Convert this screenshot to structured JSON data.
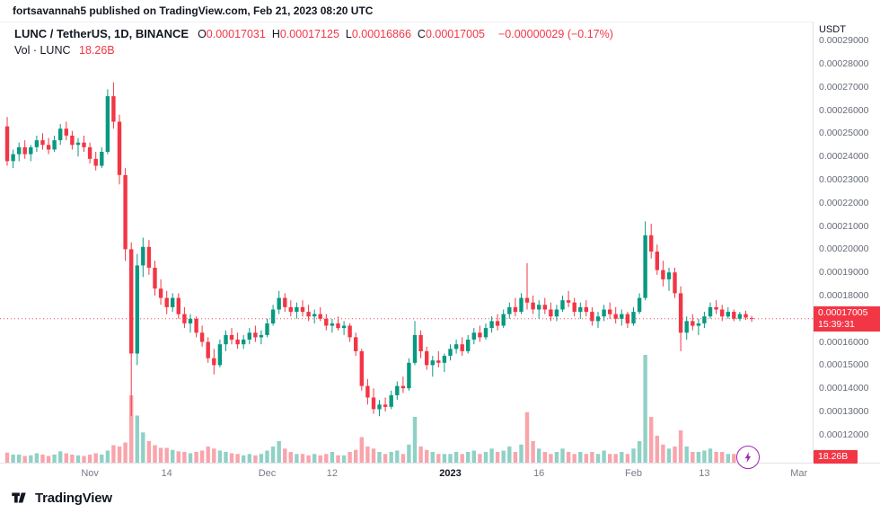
{
  "topbar": {
    "text": "fortsavannah5 published on TradingView.com, Feb 21, 2023 08:20 UTC"
  },
  "legend": {
    "symbol": "LUNC / TetherUS, 1D, BINANCE",
    "ohlc": [
      {
        "k": "O",
        "v": "0.00017031"
      },
      {
        "k": "H",
        "v": "0.00017125"
      },
      {
        "k": "L",
        "v": "0.00016866"
      },
      {
        "k": "C",
        "v": "0.00017005"
      }
    ],
    "change": "−0.00000029 (−0.17%)",
    "vol_label": "Vol · LUNC",
    "vol_value": "18.26B"
  },
  "axis": {
    "currency": "USDT",
    "y_ticks": [
      "0.00029000",
      "0.00028000",
      "0.00027000",
      "0.00026000",
      "0.00025000",
      "0.00024000",
      "0.00023000",
      "0.00022000",
      "0.00021000",
      "0.00020000",
      "0.00019000",
      "0.00018000",
      "0.00017000",
      "0.00016000",
      "0.00015000",
      "0.00014000",
      "0.00013000",
      "0.00012000"
    ],
    "price_badge": {
      "price": "0.00017005",
      "countdown": "15:39:31"
    },
    "volume_badge": "18.26B",
    "x_labels": [
      {
        "label": "Nov",
        "day": 14,
        "bold": false
      },
      {
        "label": "14",
        "day": 27,
        "bold": false
      },
      {
        "label": "Dec",
        "day": 44,
        "bold": false
      },
      {
        "label": "12",
        "day": 55,
        "bold": false
      },
      {
        "label": "2023",
        "day": 75,
        "bold": true
      },
      {
        "label": "16",
        "day": 90,
        "bold": false
      },
      {
        "label": "Feb",
        "day": 106,
        "bold": false
      },
      {
        "label": "13",
        "day": 118,
        "bold": false
      },
      {
        "label": "Mar",
        "day": 134,
        "bold": false
      }
    ]
  },
  "footer": {
    "brand": "TradingView"
  },
  "colors": {
    "up": "#089981",
    "down": "#F23645",
    "vol_up": "rgba(8,153,129,0.45)",
    "vol_down": "rgba(242,54,69,0.45)",
    "price_line": "#F23645",
    "boost": "#9C27B0"
  },
  "chart_data": {
    "type": "candlestick",
    "title": "LUNC / TetherUS, 1D, BINANCE",
    "interval": "1D",
    "quote_currency": "USDT",
    "legend_position": "top-left",
    "grid": false,
    "ylim": [
      0.00012,
      0.000295
    ],
    "price_scale": 1e-05,
    "volume_unit": "B",
    "volume_axis_max_b": 160,
    "last_close": 0.00017005,
    "series_note": "candles = [open, high, low, close, volumeB] in units of price_scale (1e-5 USDT), daily from mid-Oct 2022 to Feb 21 2023",
    "candles": [
      [
        25.3,
        25.7,
        23.6,
        23.8,
        15
      ],
      [
        23.8,
        24.3,
        23.5,
        24.1,
        12
      ],
      [
        24.1,
        24.6,
        23.8,
        24.4,
        12
      ],
      [
        24.4,
        24.7,
        23.9,
        24.1,
        10
      ],
      [
        24.1,
        24.5,
        23.8,
        24.4,
        11
      ],
      [
        24.4,
        24.9,
        24.2,
        24.7,
        14
      ],
      [
        24.7,
        25.0,
        24.3,
        24.5,
        12
      ],
      [
        24.5,
        24.8,
        24.1,
        24.3,
        10
      ],
      [
        24.3,
        24.9,
        24.2,
        24.7,
        12
      ],
      [
        24.7,
        25.4,
        24.5,
        25.2,
        17
      ],
      [
        25.2,
        25.5,
        24.7,
        24.9,
        14
      ],
      [
        24.9,
        25.1,
        24.3,
        24.5,
        12
      ],
      [
        24.5,
        24.8,
        24.0,
        24.6,
        11
      ],
      [
        24.6,
        24.9,
        24.2,
        24.4,
        10
      ],
      [
        24.4,
        24.6,
        23.7,
        23.9,
        12
      ],
      [
        23.9,
        24.2,
        23.4,
        23.6,
        14
      ],
      [
        23.6,
        24.4,
        23.5,
        24.2,
        12
      ],
      [
        24.2,
        26.9,
        24.1,
        26.6,
        18
      ],
      [
        26.6,
        27.2,
        25.2,
        25.5,
        26
      ],
      [
        25.5,
        25.8,
        22.8,
        23.2,
        24
      ],
      [
        23.2,
        23.5,
        19.5,
        20.0,
        30
      ],
      [
        20.0,
        20.3,
        12.8,
        15.5,
        100
      ],
      [
        15.5,
        19.8,
        15.0,
        19.3,
        70
      ],
      [
        19.3,
        20.5,
        18.8,
        20.1,
        45
      ],
      [
        20.1,
        20.4,
        18.9,
        19.2,
        32
      ],
      [
        19.2,
        19.5,
        18.0,
        18.3,
        26
      ],
      [
        18.3,
        18.7,
        17.6,
        17.9,
        22
      ],
      [
        17.9,
        18.2,
        17.2,
        17.5,
        22
      ],
      [
        17.5,
        18.1,
        17.3,
        17.9,
        19
      ],
      [
        17.9,
        18.1,
        17.0,
        17.2,
        17
      ],
      [
        17.2,
        17.5,
        16.6,
        16.8,
        16
      ],
      [
        16.8,
        17.2,
        16.4,
        17.0,
        14
      ],
      [
        17.0,
        17.1,
        16.2,
        16.4,
        16
      ],
      [
        16.4,
        16.7,
        15.8,
        16.0,
        18
      ],
      [
        16.0,
        16.2,
        15.1,
        15.3,
        24
      ],
      [
        15.3,
        15.7,
        14.6,
        15.0,
        21
      ],
      [
        15.0,
        16.1,
        14.9,
        15.9,
        18
      ],
      [
        15.9,
        16.5,
        15.6,
        16.3,
        16
      ],
      [
        16.3,
        16.6,
        15.9,
        16.1,
        14
      ],
      [
        16.1,
        16.4,
        15.7,
        15.9,
        13
      ],
      [
        15.9,
        16.3,
        15.7,
        16.1,
        11
      ],
      [
        16.1,
        16.6,
        15.9,
        16.4,
        13
      ],
      [
        16.4,
        16.7,
        16.0,
        16.2,
        11
      ],
      [
        16.2,
        16.5,
        15.9,
        16.3,
        13
      ],
      [
        16.3,
        17.0,
        16.2,
        16.8,
        18
      ],
      [
        16.8,
        17.6,
        16.7,
        17.4,
        24
      ],
      [
        17.4,
        18.2,
        17.2,
        17.9,
        32
      ],
      [
        17.9,
        18.1,
        17.3,
        17.5,
        21
      ],
      [
        17.5,
        17.8,
        17.1,
        17.3,
        16
      ],
      [
        17.3,
        17.7,
        17.0,
        17.5,
        13
      ],
      [
        17.5,
        17.8,
        17.1,
        17.3,
        13
      ],
      [
        17.3,
        17.6,
        16.9,
        17.1,
        11
      ],
      [
        17.1,
        17.4,
        16.8,
        17.2,
        13
      ],
      [
        17.2,
        17.5,
        16.9,
        17.0,
        11
      ],
      [
        17.0,
        17.2,
        16.5,
        16.7,
        13
      ],
      [
        16.7,
        17.0,
        16.4,
        16.8,
        16
      ],
      [
        16.8,
        17.1,
        16.5,
        16.6,
        11
      ],
      [
        16.6,
        16.9,
        16.3,
        16.7,
        11
      ],
      [
        16.7,
        16.8,
        16.0,
        16.2,
        16
      ],
      [
        16.2,
        16.4,
        15.4,
        15.6,
        19
      ],
      [
        15.6,
        15.7,
        13.9,
        14.1,
        38
      ],
      [
        14.1,
        14.4,
        13.3,
        13.6,
        24
      ],
      [
        13.6,
        14.0,
        12.9,
        13.1,
        21
      ],
      [
        13.1,
        13.5,
        12.8,
        13.3,
        16
      ],
      [
        13.3,
        13.6,
        13.0,
        13.2,
        13
      ],
      [
        13.2,
        13.9,
        13.1,
        13.7,
        16
      ],
      [
        13.7,
        14.3,
        13.5,
        14.1,
        18
      ],
      [
        14.1,
        14.5,
        13.8,
        14.0,
        13
      ],
      [
        14.0,
        15.3,
        13.9,
        15.1,
        27
      ],
      [
        15.1,
        16.9,
        15.0,
        16.3,
        68
      ],
      [
        16.3,
        16.5,
        15.3,
        15.6,
        24
      ],
      [
        15.6,
        15.8,
        14.8,
        15.0,
        19
      ],
      [
        15.0,
        15.4,
        14.5,
        15.2,
        16
      ],
      [
        15.2,
        15.6,
        14.9,
        15.1,
        13
      ],
      [
        15.1,
        15.5,
        14.7,
        15.4,
        13
      ],
      [
        15.4,
        15.9,
        15.2,
        15.7,
        13
      ],
      [
        15.7,
        16.1,
        15.5,
        15.9,
        16
      ],
      [
        15.9,
        16.2,
        15.4,
        15.6,
        13
      ],
      [
        15.6,
        16.3,
        15.5,
        16.1,
        16
      ],
      [
        16.1,
        16.6,
        15.9,
        16.4,
        18
      ],
      [
        16.4,
        16.7,
        16.0,
        16.2,
        13
      ],
      [
        16.2,
        16.8,
        16.1,
        16.6,
        16
      ],
      [
        16.6,
        17.1,
        16.4,
        16.9,
        21
      ],
      [
        16.9,
        17.2,
        16.5,
        16.7,
        16
      ],
      [
        16.7,
        17.4,
        16.6,
        17.2,
        18
      ],
      [
        17.2,
        17.7,
        17.0,
        17.5,
        24
      ],
      [
        17.5,
        17.9,
        17.1,
        17.3,
        16
      ],
      [
        17.3,
        18.1,
        17.2,
        17.9,
        27
      ],
      [
        17.9,
        19.4,
        17.4,
        17.7,
        75
      ],
      [
        17.7,
        18.0,
        17.2,
        17.4,
        32
      ],
      [
        17.4,
        17.8,
        17.0,
        17.6,
        21
      ],
      [
        17.6,
        17.9,
        17.2,
        17.4,
        16
      ],
      [
        17.4,
        17.7,
        16.9,
        17.1,
        13
      ],
      [
        17.1,
        17.6,
        16.9,
        17.4,
        16
      ],
      [
        17.4,
        18.0,
        17.3,
        17.8,
        21
      ],
      [
        17.8,
        18.2,
        17.5,
        17.7,
        16
      ],
      [
        17.7,
        17.9,
        17.1,
        17.3,
        13
      ],
      [
        17.3,
        17.7,
        17.0,
        17.5,
        16
      ],
      [
        17.5,
        17.8,
        17.1,
        17.3,
        13
      ],
      [
        17.3,
        17.5,
        16.7,
        16.9,
        16
      ],
      [
        16.9,
        17.3,
        16.6,
        17.1,
        13
      ],
      [
        17.1,
        17.6,
        16.9,
        17.4,
        18
      ],
      [
        17.4,
        17.7,
        17.0,
        17.2,
        13
      ],
      [
        17.2,
        17.5,
        16.8,
        17.0,
        13
      ],
      [
        17.0,
        17.4,
        16.7,
        17.2,
        16
      ],
      [
        17.2,
        17.3,
        16.6,
        16.8,
        13
      ],
      [
        16.8,
        17.5,
        16.7,
        17.3,
        21
      ],
      [
        17.3,
        18.1,
        17.2,
        17.9,
        32
      ],
      [
        17.9,
        21.2,
        17.8,
        20.6,
        160
      ],
      [
        20.6,
        21.1,
        19.6,
        19.9,
        68
      ],
      [
        19.9,
        20.2,
        18.9,
        19.1,
        40
      ],
      [
        19.1,
        19.5,
        18.4,
        18.7,
        27
      ],
      [
        18.7,
        19.2,
        18.2,
        19.0,
        21
      ],
      [
        19.0,
        19.2,
        17.9,
        18.1,
        24
      ],
      [
        18.1,
        18.4,
        15.6,
        16.4,
        48
      ],
      [
        16.4,
        17.1,
        16.1,
        16.9,
        24
      ],
      [
        16.9,
        17.2,
        16.5,
        16.7,
        16
      ],
      [
        16.7,
        17.0,
        16.3,
        16.8,
        16
      ],
      [
        16.8,
        17.3,
        16.6,
        17.1,
        18
      ],
      [
        17.1,
        17.7,
        17.0,
        17.5,
        21
      ],
      [
        17.5,
        17.8,
        17.2,
        17.4,
        16
      ],
      [
        17.4,
        17.6,
        16.9,
        17.1,
        16
      ],
      [
        17.1,
        17.5,
        17.0,
        17.3,
        13
      ],
      [
        17.3,
        17.4,
        16.9,
        17.0,
        13
      ],
      [
        17.0,
        17.3,
        16.9,
        17.2,
        11
      ],
      [
        17.2,
        17.35,
        16.95,
        17.05,
        11
      ],
      [
        17.031,
        17.125,
        16.866,
        17.005,
        18.26
      ]
    ]
  }
}
